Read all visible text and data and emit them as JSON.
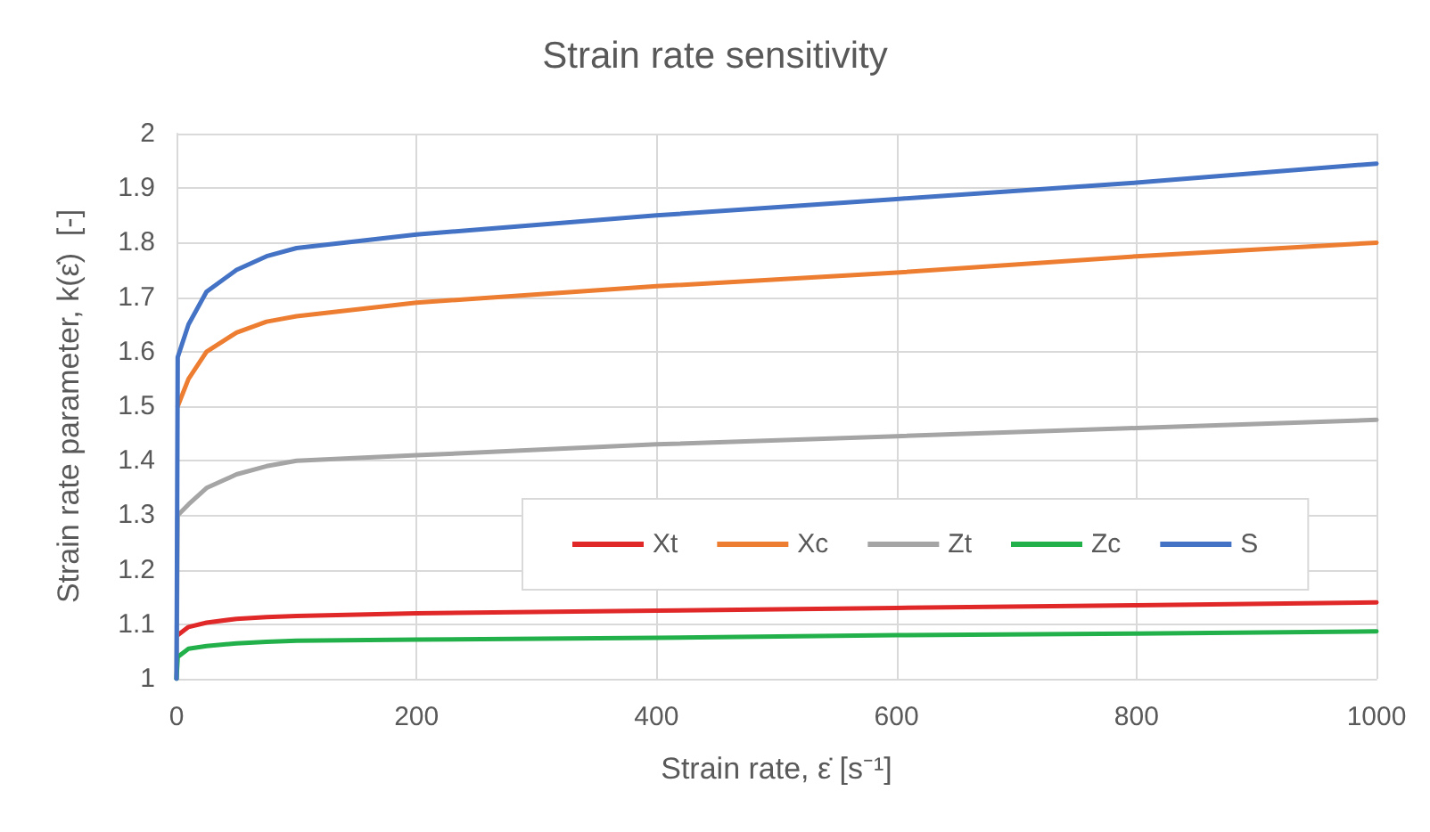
{
  "chart_data": {
    "type": "line",
    "title": "Strain rate sensitivity",
    "xlabel": "Strain rate, ε̇ [s⁻¹]",
    "ylabel": "Strain rate parameter, k(ε̇)  [-]",
    "xlim": [
      0,
      1000
    ],
    "xticks": [
      0,
      200,
      400,
      600,
      800,
      1000
    ],
    "ylim": [
      1,
      2
    ],
    "yticks": [
      1,
      1.1,
      1.2,
      1.3,
      1.4,
      1.5,
      1.6,
      1.7,
      1.8,
      1.9,
      2
    ],
    "grid": true,
    "legend": "right",
    "marker": "none",
    "line_style": "solid",
    "x": [
      0,
      1,
      10,
      25,
      50,
      75,
      100,
      200,
      400,
      600,
      800,
      1000
    ],
    "series": [
      {
        "name": "Xt",
        "color": "#e02828",
        "values": [
          null,
          1.08,
          1.095,
          1.103,
          1.11,
          1.113,
          1.115,
          1.12,
          1.125,
          1.13,
          1.135,
          1.14
        ]
      },
      {
        "name": "Xc",
        "color": "#ed7d31",
        "values": [
          null,
          1.5,
          1.55,
          1.6,
          1.635,
          1.655,
          1.665,
          1.69,
          1.72,
          1.745,
          1.775,
          1.8
        ]
      },
      {
        "name": "Zt",
        "color": "#a5a5a5",
        "values": [
          1,
          1.3,
          1.32,
          1.35,
          1.375,
          1.39,
          1.4,
          1.41,
          1.43,
          1.445,
          1.46,
          1.475
        ]
      },
      {
        "name": "Zc",
        "color": "#22b04a",
        "values": [
          1,
          1.04,
          1.055,
          1.06,
          1.065,
          1.068,
          1.07,
          1.072,
          1.075,
          1.08,
          1.083,
          1.087
        ]
      },
      {
        "name": "S",
        "color": "#4472c4",
        "values": [
          1,
          1.59,
          1.65,
          1.71,
          1.75,
          1.775,
          1.79,
          1.815,
          1.85,
          1.88,
          1.91,
          1.945
        ]
      }
    ]
  }
}
